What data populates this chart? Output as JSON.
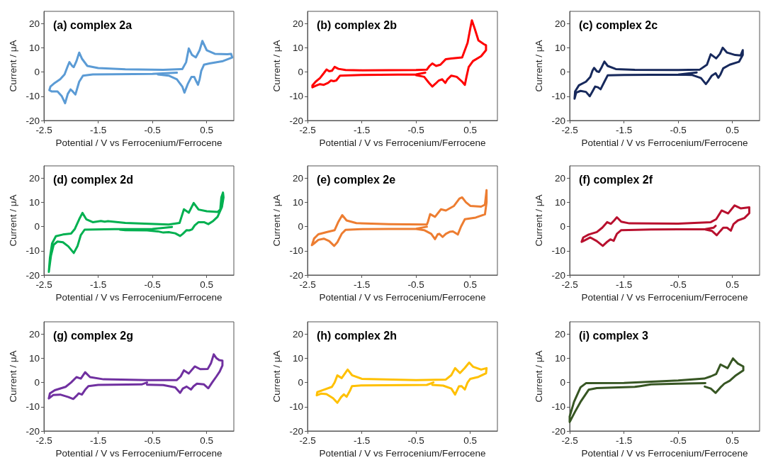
{
  "chart_data": [
    {
      "type": "line",
      "title": "(a) complex 2a",
      "xlabel": "Potential / V vs Ferrocenium/Ferrocene",
      "ylabel": "Current / μA",
      "xlim": [
        -2.5,
        1.0
      ],
      "xticks": [
        -2.5,
        -1.5,
        -0.5,
        0.5
      ],
      "ylim": [
        -20,
        25
      ],
      "yticks": [
        -20,
        -10,
        0,
        10,
        20
      ],
      "series": [
        {
          "color": "#5b9bd5",
          "x": [
            -0.05,
            -0.5,
            -1.2,
            -1.6,
            -1.78,
            -1.85,
            -1.92,
            -1.97,
            -2.01,
            -2.06,
            -2.11,
            -2.17,
            -2.25,
            -2.36,
            -2.4,
            -2.38,
            -2.3,
            -2.2,
            -2.12,
            -2.06,
            -2.03,
            -1.98,
            -1.95,
            -1.9,
            -1.85,
            -1.8,
            -1.7,
            -1.5,
            -1,
            -0.3,
            0.05,
            0.12,
            0.17,
            0.23,
            0.3,
            0.37,
            0.42,
            0.5,
            0.65,
            0.88,
            0.95,
            0.97,
            0.8,
            0.55,
            0.45,
            0.4,
            0.37,
            0.34,
            0.3,
            0.27,
            0.22,
            0.15,
            0.09,
            0.05,
            -0.05,
            -0.2,
            -0.4
          ],
          "values": [
            -0.3,
            -0.8,
            -0.9,
            -1,
            -1.5,
            -4,
            -9.3,
            -8,
            -7.2,
            -9,
            -12.9,
            -10,
            -8,
            -8,
            -7.5,
            -6,
            -4.5,
            -3,
            -1,
            2.5,
            4.1,
            2.5,
            2,
            4.5,
            8,
            5.5,
            2.5,
            1.6,
            1.1,
            0.9,
            1.2,
            4,
            9.7,
            7,
            6,
            9,
            12.8,
            9,
            7.5,
            7.3,
            7.5,
            6,
            4.5,
            3.5,
            3,
            0.5,
            -3,
            -5.3,
            -3.5,
            -2,
            -2,
            -5,
            -8.5,
            -6,
            -3,
            -1.5,
            -1
          ]
        }
      ]
    },
    {
      "type": "line",
      "title": "(b) complex 2b",
      "xlabel": "Potential / V vs Ferrocenium/Ferrocene",
      "ylabel": "Current / μA",
      "xlim": [
        -2.5,
        1.0
      ],
      "xticks": [
        -2.5,
        -1.5,
        -0.5,
        0.5
      ],
      "ylim": [
        -20,
        25
      ],
      "yticks": [
        -20,
        -10,
        0,
        10,
        20
      ],
      "series": [
        {
          "color": "#ff0000",
          "x": [
            -0.33,
            -0.5,
            -1.5,
            -1.9,
            -1.97,
            -2.02,
            -2.07,
            -2.12,
            -2.2,
            -2.27,
            -2.33,
            -2.41,
            -2.41,
            -2.35,
            -2.27,
            -2.2,
            -2.15,
            -2.1,
            -2.05,
            -2.0,
            -1.93,
            -1.8,
            -1.5,
            -0.5,
            -0.3,
            -0.25,
            -0.2,
            -0.13,
            -0.05,
            0.05,
            0.15,
            0.35,
            0.45,
            0.5,
            0.53,
            0.58,
            0.65,
            0.75,
            0.79,
            0.79,
            0.7,
            0.55,
            0.47,
            0.43,
            0.4,
            0.35,
            0.25,
            0.15,
            0.08,
            0.04,
            -0.02,
            -0.08,
            -0.14,
            -0.2,
            -0.26,
            -0.35,
            -0.5
          ],
          "values": [
            -0.3,
            -1,
            -1.2,
            -1.5,
            -3.5,
            -3.8,
            -3.5,
            -4.5,
            -5.3,
            -5,
            -5.5,
            -6.3,
            -5.5,
            -4,
            -2.5,
            -0.5,
            1,
            0.3,
            0.5,
            2.1,
            1.3,
            0.8,
            0.7,
            0.8,
            1,
            2.5,
            3.5,
            2.5,
            3,
            5.3,
            5.6,
            6,
            12,
            18,
            21.3,
            18,
            13,
            11.5,
            11,
            9,
            6.5,
            4.5,
            2,
            -2,
            -5.3,
            -4,
            -2,
            -1.5,
            -3,
            -4.5,
            -3,
            -3.5,
            -4.8,
            -6,
            -4.5,
            -2,
            -1.3
          ]
        }
      ]
    },
    {
      "type": "line",
      "title": "(c) complex 2c",
      "xlabel": "Potential / V vs Ferrocenium/Ferrocene",
      "ylabel": "Current / μA",
      "xlim": [
        -2.5,
        1.0
      ],
      "xticks": [
        -2.5,
        -1.5,
        -0.5,
        0.5
      ],
      "ylim": [
        -20,
        25
      ],
      "yticks": [
        -20,
        -10,
        0,
        10,
        20
      ],
      "series": [
        {
          "color": "#17295c",
          "x": [
            -0.16,
            -0.5,
            -1.5,
            -1.8,
            -1.86,
            -1.93,
            -1.98,
            -2.03,
            -2.08,
            -2.13,
            -2.2,
            -2.3,
            -2.38,
            -2.41,
            -2.4,
            -2.33,
            -2.2,
            -2.12,
            -2.08,
            -2.05,
            -2.0,
            -1.96,
            -1.91,
            -1.86,
            -1.8,
            -1.65,
            -1.3,
            -0.5,
            -0.1,
            0.03,
            0.1,
            0.2,
            0.27,
            0.32,
            0.4,
            0.55,
            0.65,
            0.69,
            0.69,
            0.62,
            0.45,
            0.33,
            0.28,
            0.24,
            0.19,
            0.12,
            0.06,
            0.01,
            -0.08,
            -0.25,
            -0.5
          ],
          "values": [
            -0.2,
            -1.1,
            -1.2,
            -1.4,
            -4,
            -7.1,
            -6.3,
            -6,
            -8,
            -10,
            -8.2,
            -7.8,
            -8.5,
            -11,
            -8,
            -5.5,
            -4,
            -2,
            0.5,
            1.7,
            0.3,
            0,
            2,
            4.3,
            2.5,
            1.2,
            0.9,
            0.8,
            1,
            3,
            7.3,
            5.6,
            7.5,
            10,
            8,
            7,
            6.8,
            9,
            7,
            4.2,
            3,
            1.5,
            -1,
            -2.4,
            -0.5,
            -1.5,
            -3.5,
            -5,
            -2.5,
            -1.2,
            -1.1
          ]
        }
      ]
    },
    {
      "type": "line",
      "title": "(d) complex 2d",
      "xlabel": "Potential / V vs Ferrocenium/Ferrocene",
      "ylabel": "Current / μA",
      "xlim": [
        -2.5,
        1.0
      ],
      "xticks": [
        -2.5,
        -1.5,
        -0.5,
        0.5
      ],
      "ylim": [
        -20,
        25
      ],
      "yticks": [
        -20,
        -10,
        0,
        10,
        20
      ],
      "series": [
        {
          "color": "#00b050",
          "x": [
            -0.14,
            -0.5,
            -1.2,
            -1.75,
            -1.82,
            -1.88,
            -1.95,
            -2.05,
            -2.15,
            -2.25,
            -2.32,
            -2.37,
            -2.41,
            -2.39,
            -2.35,
            -2.28,
            -2.15,
            -2.0,
            -1.93,
            -1.85,
            -1.79,
            -1.72,
            -1.6,
            -1.45,
            -1.38,
            -1.32,
            -1,
            -0.2,
            0.0,
            0.08,
            0.17,
            0.26,
            0.35,
            0.5,
            0.7,
            0.75,
            0.77,
            0.8,
            0.81,
            0.78,
            0.7,
            0.62,
            0.53,
            0.45,
            0.35,
            0.28,
            0.23,
            0.18,
            0.13,
            0.06,
            0.01,
            -0.08,
            -0.2,
            -0.3,
            -0.4,
            -0.6,
            -1.0,
            -1.1
          ],
          "values": [
            -0.2,
            -1,
            -1.1,
            -1.3,
            -3.5,
            -8,
            -10.9,
            -8.2,
            -6.5,
            -6.2,
            -7.5,
            -12,
            -18.7,
            -13,
            -7,
            -4,
            -3.3,
            -2.9,
            -1,
            3,
            5.6,
            3,
            1.8,
            2.3,
            2,
            2.2,
            1.5,
            0.8,
            1.5,
            7.1,
            5.7,
            9.7,
            7,
            6.3,
            6,
            7,
            12,
            14,
            12,
            8,
            4,
            2.3,
            1,
            1.8,
            1.8,
            0.5,
            -1.2,
            -1.6,
            -1.5,
            -3,
            -3.9,
            -2.8,
            -2.3,
            -2.5,
            -2,
            -1.6,
            -1.5,
            -1.3
          ]
        }
      ]
    },
    {
      "type": "line",
      "title": "(e) complex 2e",
      "xlabel": "Potential / V vs Ferrocenium/Ferrocene",
      "ylabel": "Current / μA",
      "xlim": [
        -2.5,
        1.0
      ],
      "xticks": [
        -2.5,
        -1.5,
        -0.5,
        0.5
      ],
      "ylim": [
        -20,
        25
      ],
      "yticks": [
        -20,
        -10,
        0,
        10,
        20
      ],
      "series": [
        {
          "color": "#ed7d31",
          "x": [
            -0.3,
            -0.5,
            -1.5,
            -1.8,
            -1.87,
            -1.95,
            -2.01,
            -2.1,
            -2.2,
            -2.3,
            -2.38,
            -2.42,
            -2.38,
            -2.3,
            -2.15,
            -2.0,
            -1.93,
            -1.86,
            -1.78,
            -1.6,
            -1,
            -0.3,
            -0.28,
            -0.24,
            -0.15,
            -0.04,
            0.05,
            0.2,
            0.3,
            0.35,
            0.42,
            0.5,
            0.7,
            0.77,
            0.8,
            0.8,
            0.77,
            0.6,
            0.4,
            0.33,
            0.27,
            0.18,
            0.12,
            0.05,
            -0.01,
            -0.07,
            -0.1,
            -0.15,
            -0.22,
            -0.35,
            -0.5
          ],
          "values": [
            -0.1,
            -0.9,
            -1.1,
            -1.4,
            -3,
            -6.5,
            -8,
            -6,
            -5,
            -5.5,
            -7,
            -7.7,
            -5,
            -3.2,
            -2.3,
            -1.5,
            2,
            4.7,
            2.5,
            1.4,
            1,
            0.8,
            2,
            5.1,
            4,
            7.1,
            6.6,
            8.5,
            11.5,
            12,
            10,
            8.5,
            8.2,
            9,
            15,
            10,
            5,
            3.7,
            3,
            0,
            -3.3,
            -2,
            -2.2,
            -3,
            -4.3,
            -3,
            -3.2,
            -5.2,
            -3,
            -1.5,
            -1
          ]
        }
      ]
    },
    {
      "type": "line",
      "title": "(f) complex 2f",
      "xlabel": "Potential / V vs Ferrocenium/Ferrocene",
      "ylabel": "Current / μA",
      "xlim": [
        -2.5,
        1.0
      ],
      "xticks": [
        -2.5,
        -1.5,
        -0.5,
        0.5
      ],
      "ylim": [
        -20,
        25
      ],
      "yticks": [
        -20,
        -10,
        0,
        10,
        20
      ],
      "series": [
        {
          "color": "#b8102e",
          "x": [
            0.19,
            0.15,
            0,
            -1,
            -1.55,
            -1.63,
            -1.69,
            -1.75,
            -1.82,
            -1.89,
            -2.0,
            -2.12,
            -2.25,
            -2.28,
            -2.25,
            -2.15,
            -2.0,
            -1.9,
            -1.81,
            -1.74,
            -1.68,
            -1.63,
            -1.55,
            -1.4,
            -0.5,
            0.1,
            0.2,
            0.3,
            0.42,
            0.54,
            0.65,
            0.81,
            0.81,
            0.72,
            0.6,
            0.52,
            0.47,
            0.4,
            0.33,
            0.27,
            0.21,
            0.12,
            0
          ],
          "values": [
            0.3,
            -0.5,
            -1.1,
            -1.2,
            -1.5,
            -3,
            -5.9,
            -5.3,
            -6.5,
            -8,
            -6,
            -4.5,
            -6,
            -6.3,
            -4.5,
            -3.3,
            -2.3,
            -0.5,
            1.8,
            1.1,
            2.5,
            3.8,
            2,
            1.3,
            1.2,
            1.8,
            3,
            6.6,
            5.4,
            8.7,
            7.5,
            7.9,
            5.5,
            3.5,
            2.5,
            1,
            -1.7,
            -0.5,
            -0.5,
            -2,
            -3.6,
            -1.8,
            -1.2
          ]
        }
      ]
    },
    {
      "type": "line",
      "title": "(g) complex 2g",
      "xlabel": "Potential / V vs Ferrocenium/Ferrocene",
      "ylabel": "Current / μA",
      "xlim": [
        -2.5,
        1.0
      ],
      "xticks": [
        -2.5,
        -1.5,
        -0.5,
        0.5
      ],
      "ylim": [
        -20,
        25
      ],
      "yticks": [
        -20,
        -10,
        0,
        10,
        20
      ],
      "series": [
        {
          "color": "#7030a0",
          "x": [
            -0.6,
            -0.7,
            -1.5,
            -1.68,
            -1.74,
            -1.8,
            -1.86,
            -1.9,
            -1.96,
            -2.05,
            -2.2,
            -2.33,
            -2.41,
            -2.39,
            -2.3,
            -2.1,
            -2.0,
            -1.9,
            -1.82,
            -1.74,
            -1.65,
            -1.4,
            -0.6,
            -0.05,
            0.02,
            0.08,
            0.17,
            0.28,
            0.38,
            0.52,
            0.58,
            0.63,
            0.68,
            0.73,
            0.79,
            0.79,
            0.74,
            0.68,
            0.6,
            0.53,
            0.45,
            0.32,
            0.26,
            0.21,
            0.13,
            0.06,
            0.01,
            -0.08,
            -0.3,
            -0.6
          ],
          "values": [
            0,
            -0.8,
            -1,
            -1.5,
            -3,
            -5,
            -4.5,
            -5.5,
            -6.8,
            -6,
            -5,
            -5.2,
            -6.6,
            -4.5,
            -3.2,
            -1.8,
            0,
            2.2,
            1.6,
            4.2,
            2.2,
            1.3,
            1,
            1,
            2.5,
            5,
            3.7,
            6.6,
            5.5,
            5.6,
            8,
            11.6,
            10,
            9.2,
            9,
            7,
            4.5,
            2.5,
            0,
            -2.4,
            -0.8,
            -0.5,
            -1.5,
            -2.9,
            -1.7,
            -2.5,
            -4.3,
            -2,
            -1.1,
            -0.9
          ]
        }
      ]
    },
    {
      "type": "line",
      "title": "(h) complex 2h",
      "xlabel": "Potential / V vs Ferrocenium/Ferrocene",
      "ylabel": "Current / μA",
      "xlim": [
        -2.5,
        1.0
      ],
      "xticks": [
        -2.5,
        -1.5,
        -0.5,
        0.5
      ],
      "ylim": [
        -20,
        25
      ],
      "yticks": [
        -20,
        -10,
        0,
        10,
        20
      ],
      "series": [
        {
          "color": "#ffc000",
          "x": [
            -0.18,
            -0.3,
            -1.5,
            -1.68,
            -1.72,
            -1.78,
            -1.83,
            -1.88,
            -1.95,
            -2.03,
            -2.15,
            -2.25,
            -2.33,
            -2.32,
            -2.2,
            -2.05,
            -2.0,
            -1.95,
            -1.87,
            -1.76,
            -1.68,
            -1.5,
            -0.5,
            0.05,
            0.15,
            0.22,
            0.31,
            0.4,
            0.48,
            0.55,
            0.7,
            0.8,
            0.79,
            0.65,
            0.5,
            0.45,
            0.4,
            0.34,
            0.29,
            0.22,
            0.15,
            0,
            -0.2
          ],
          "values": [
            0,
            -1,
            -1.2,
            -1.5,
            -3.5,
            -5.9,
            -4.9,
            -6,
            -8.4,
            -6.5,
            -4.8,
            -4.6,
            -5.3,
            -4,
            -3,
            -1.8,
            0,
            2.9,
            1.8,
            5.3,
            3,
            1.5,
            1,
            1.2,
            3,
            5.9,
            3.9,
            6,
            8.2,
            6.5,
            5.3,
            5.9,
            3.8,
            2.3,
            1.5,
            0,
            -2.9,
            -1.5,
            -1.6,
            -5,
            -2.5,
            -1.3,
            -1
          ]
        }
      ]
    },
    {
      "type": "line",
      "title": "(i) complex 3",
      "xlabel": "Potential / V vs Ferrocenium/Ferrocene",
      "ylabel": "Current / μA",
      "xlim": [
        -2.5,
        1.0
      ],
      "xticks": [
        -2.5,
        -1.5,
        -0.5,
        0.5
      ],
      "ylim": [
        -20,
        25
      ],
      "yticks": [
        -20,
        -10,
        0,
        10,
        20
      ],
      "series": [
        {
          "color": "#375623",
          "x": [
            0,
            -0.5,
            -1,
            -1.2,
            -1.3,
            -2.0,
            -2.15,
            -2.3,
            -2.4,
            -2.5,
            -2.5,
            -2.42,
            -2.3,
            -2.2,
            -1.5,
            -0.5,
            -0.02,
            0.1,
            0.2,
            0.28,
            0.41,
            0.51,
            0.6,
            0.7,
            0.7,
            0.55,
            0.45,
            0.35,
            0.28,
            0.19,
            0.1,
            -0.01
          ],
          "values": [
            -0.3,
            -0.5,
            -0.8,
            -1.5,
            -1.8,
            -2.3,
            -3,
            -8,
            -12,
            -16.3,
            -14,
            -8,
            -2,
            -0.3,
            -0.2,
            0.8,
            1.6,
            2.5,
            3.5,
            7.4,
            5.9,
            9.9,
            7.8,
            6.6,
            5,
            2.7,
            0.7,
            -0.5,
            -2,
            -4.3,
            -2.5,
            -1.7
          ]
        }
      ]
    }
  ]
}
